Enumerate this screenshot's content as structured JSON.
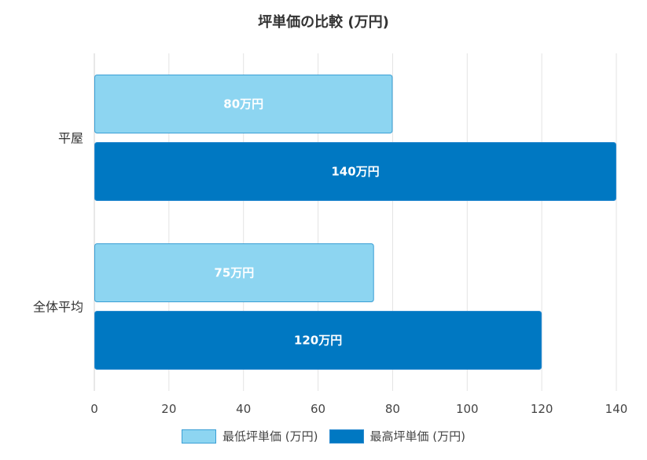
{
  "chart_data": {
    "type": "bar",
    "orientation": "horizontal",
    "title": "坪単価の比較 (万円)",
    "categories": [
      "平屋",
      "全体平均"
    ],
    "series": [
      {
        "name": "最低坪単価 (万円)",
        "values": [
          80,
          75
        ],
        "labels": [
          "80万円",
          "75万円"
        ],
        "fill": "#8dd5f1",
        "stroke": "#3a9fd5"
      },
      {
        "name": "最高坪単価 (万円)",
        "values": [
          140,
          120
        ],
        "labels": [
          "140万円",
          "120万円"
        ],
        "fill": "#0078c2",
        "stroke": "#2a8bd0"
      }
    ],
    "xlim": [
      0,
      140
    ],
    "xticks": [
      0,
      20,
      40,
      60,
      80,
      100,
      120,
      140
    ],
    "grid": true,
    "legend_position": "bottom"
  }
}
